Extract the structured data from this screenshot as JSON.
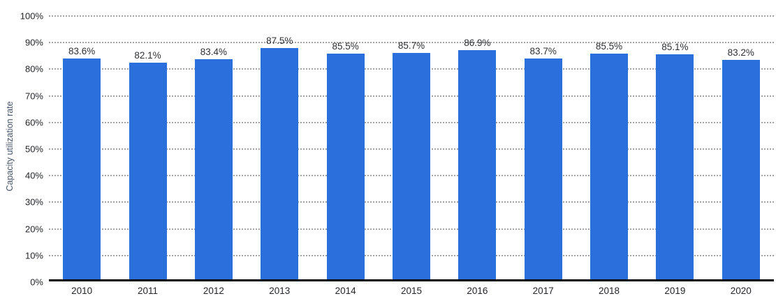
{
  "chart_data": {
    "type": "bar",
    "title": "",
    "xlabel": "",
    "ylabel": "Capacity utilization rate",
    "categories": [
      "2010",
      "2011",
      "2012",
      "2013",
      "2014",
      "2015",
      "2016",
      "2017",
      "2018",
      "2019",
      "2020"
    ],
    "values": [
      83.6,
      82.1,
      83.4,
      87.5,
      85.5,
      85.7,
      86.9,
      83.7,
      85.5,
      85.1,
      83.2
    ],
    "value_labels": [
      "83.6%",
      "82.1%",
      "83.4%",
      "87.5%",
      "85.5%",
      "85.7%",
      "86.9%",
      "83.7%",
      "85.5%",
      "85.1%",
      "83.2%"
    ],
    "ylim": [
      0,
      100
    ],
    "y_tick_step": 10,
    "y_tick_labels": [
      "0%",
      "10%",
      "20%",
      "30%",
      "40%",
      "50%",
      "60%",
      "70%",
      "80%",
      "90%",
      "100%"
    ],
    "grid": "dotted-horizontal",
    "legend": "none",
    "bar_color": "#2a6fdb",
    "axis_line_color": "#000000",
    "gridline_color": "#a3a3a3",
    "tick_label_color": "#24262b",
    "y_axis_title_color": "#44546a"
  }
}
